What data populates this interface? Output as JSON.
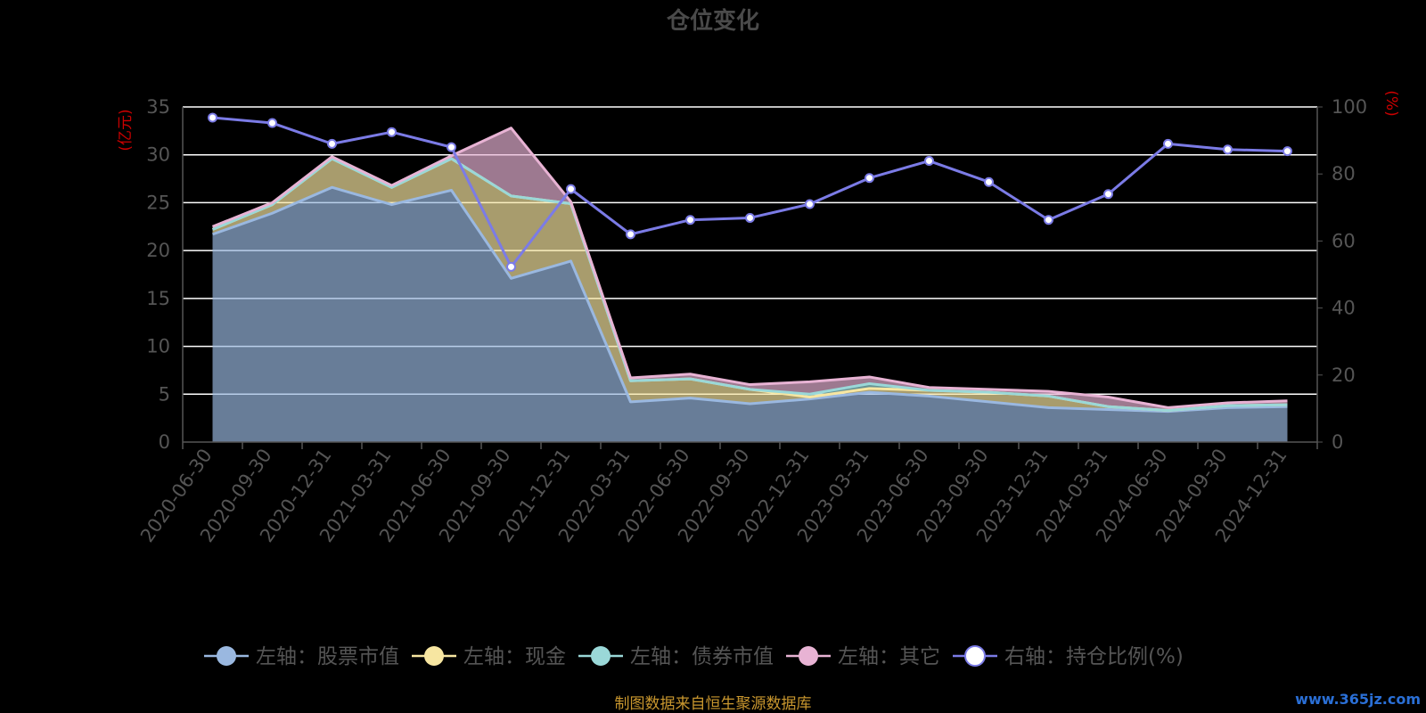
{
  "chart_data": {
    "type": "area",
    "title": "仓位变化",
    "categories": [
      "2020-06-30",
      "2020-09-30",
      "2020-12-31",
      "2021-03-31",
      "2021-06-30",
      "2021-09-30",
      "2021-12-31",
      "2022-03-31",
      "2022-06-30",
      "2022-09-30",
      "2022-12-31",
      "2023-03-31",
      "2023-06-30",
      "2023-09-30",
      "2023-12-31",
      "2024-03-31",
      "2024-06-30",
      "2024-09-30",
      "2024-12-31"
    ],
    "y_left": {
      "unit": "(亿元)",
      "min": 0,
      "max": 35,
      "ticks": [
        0,
        5,
        10,
        15,
        20,
        25,
        30,
        35
      ]
    },
    "y_right": {
      "unit": "(%)",
      "min": 0,
      "max": 100,
      "ticks": [
        0,
        20,
        40,
        60,
        80,
        100
      ]
    },
    "series": [
      {
        "name": "左轴：股票市值",
        "axis": "left",
        "stack": true,
        "color": "#9ab8e0",
        "values": [
          21.7,
          23.9,
          26.6,
          24.8,
          26.3,
          17.1,
          18.9,
          4.2,
          4.6,
          4.0,
          4.5,
          5.2,
          4.8,
          4.2,
          3.6,
          3.4,
          3.2,
          3.6,
          3.7
        ]
      },
      {
        "name": "左轴：现金",
        "axis": "left",
        "stack": true,
        "color": "#f7e6a1",
        "values": [
          0.5,
          0.9,
          3.0,
          1.8,
          3.3,
          8.6,
          6.0,
          2.2,
          2.0,
          1.5,
          0.2,
          0.4,
          0.6,
          1.0,
          1.2,
          0.3,
          0.1,
          0.2,
          0.2
        ]
      },
      {
        "name": "左轴：债券市值",
        "axis": "left",
        "stack": true,
        "color": "#9ad8d8",
        "values": [
          0,
          0,
          0,
          0,
          0,
          0,
          0,
          0,
          0,
          0,
          0.3,
          0.5,
          0,
          0,
          0,
          0,
          0,
          0,
          0
        ]
      },
      {
        "name": "左轴：其它",
        "axis": "left",
        "stack": true,
        "color": "#e8b3d4",
        "values": [
          0.3,
          0.2,
          0.2,
          0.2,
          0.3,
          7.1,
          0.2,
          0.3,
          0.5,
          0.5,
          1.3,
          0.7,
          0.3,
          0.3,
          0.5,
          1.0,
          0.3,
          0.3,
          0.4
        ]
      },
      {
        "name": "右轴：持仓比例(%)",
        "axis": "right",
        "stack": false,
        "color": "#7b7be6",
        "values": [
          96.8,
          95.2,
          89.0,
          92.5,
          88.0,
          52.3,
          75.5,
          62.0,
          66.3,
          66.9,
          71.0,
          78.8,
          83.9,
          77.6,
          66.3,
          74.0,
          89.0,
          87.3,
          86.8
        ]
      }
    ],
    "legend_position": "bottom",
    "grid": true
  },
  "footer": {
    "source": "制图数据来自恒生聚源数据库",
    "watermark": "www.365jz.com"
  }
}
